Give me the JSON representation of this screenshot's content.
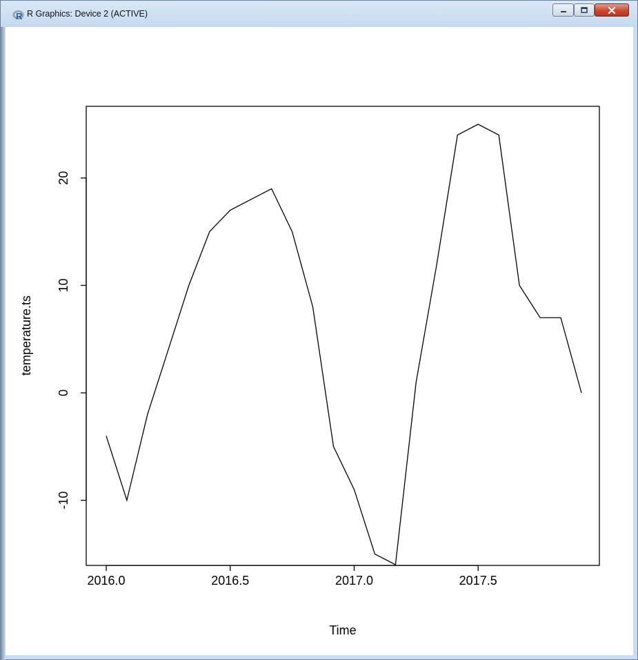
{
  "window": {
    "title": "R Graphics: Device 2 (ACTIVE)",
    "app_icon": "r-logo-icon",
    "controls": [
      "minimize-icon",
      "maximize-icon",
      "close-icon"
    ],
    "close_color": "#c94a32"
  },
  "chart_data": {
    "type": "line",
    "title": "",
    "xlabel": "Time",
    "ylabel": "temperature.ts",
    "xlim": [
      2016.0,
      2017.9167
    ],
    "ylim": [
      -16,
      25
    ],
    "x_ticks": [
      2016.0,
      2016.5,
      2017.0,
      2017.5
    ],
    "x_tick_labels": [
      "2016.0",
      "2016.5",
      "2017.0",
      "2017.5"
    ],
    "y_ticks": [
      -10,
      0,
      10,
      20
    ],
    "y_tick_labels": [
      "-10",
      "0",
      "10",
      "20"
    ],
    "grid": false,
    "legend": "none",
    "line_color": "#000000",
    "x": [
      2016.0,
      2016.0833,
      2016.1667,
      2016.25,
      2016.3333,
      2016.4167,
      2016.5,
      2016.5833,
      2016.6667,
      2016.75,
      2016.8333,
      2016.9167,
      2017.0,
      2017.0833,
      2017.1667,
      2017.25,
      2017.3333,
      2017.4167,
      2017.5,
      2017.5833,
      2017.6667,
      2017.75,
      2017.8333,
      2017.9167
    ],
    "values": [
      -4,
      -10,
      -2,
      4,
      10,
      15,
      17,
      18,
      19,
      15,
      8,
      -5,
      -9,
      -15,
      -16,
      1,
      12,
      24,
      25,
      24,
      10,
      7,
      7,
      0
    ]
  }
}
